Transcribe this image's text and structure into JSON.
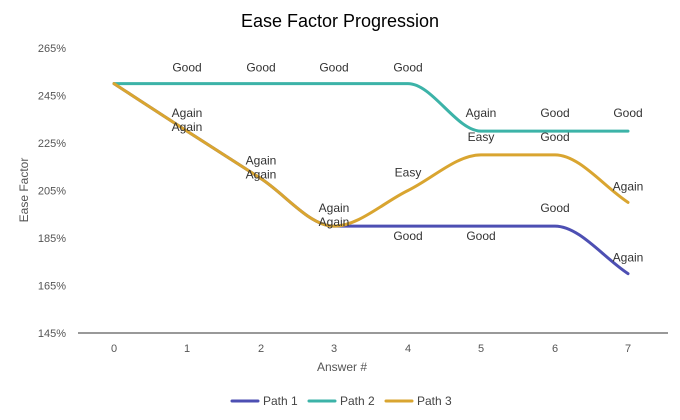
{
  "chart_data": {
    "type": "line",
    "title": "Ease Factor Progression",
    "xlabel": "Answer #",
    "ylabel": "Ease Factor",
    "x": [
      0,
      1,
      2,
      3,
      4,
      5,
      6,
      7
    ],
    "xlim": [
      0,
      7
    ],
    "ylim": [
      145,
      265
    ],
    "yticks": [
      145,
      165,
      185,
      205,
      225,
      245,
      265
    ],
    "ytick_labels": [
      "145%",
      "165%",
      "185%",
      "205%",
      "225%",
      "245%",
      "265%"
    ],
    "xtick_labels": [
      "0",
      "1",
      "2",
      "3",
      "4",
      "5",
      "6",
      "7"
    ],
    "grid": false,
    "legend_position": "bottom",
    "series": [
      {
        "name": "Path 1",
        "color": "#4d4fb3",
        "values": [
          250,
          230,
          210,
          190,
          190,
          190,
          190,
          170
        ],
        "labels": [
          "",
          "Again",
          "Again",
          "Again",
          "Good",
          "Good",
          "Good",
          "Again"
        ]
      },
      {
        "name": "Path 2",
        "color": "#3cb3a8",
        "values": [
          250,
          250,
          250,
          250,
          250,
          230,
          230,
          230
        ],
        "labels": [
          "",
          "Good",
          "Good",
          "Good",
          "Good",
          "Again",
          "Good",
          "Good"
        ]
      },
      {
        "name": "Path 3",
        "color": "#d9a530",
        "values": [
          250,
          230,
          210,
          190,
          205,
          220,
          220,
          200
        ],
        "labels": [
          "",
          "Again",
          "Again",
          "Again",
          "Easy",
          "Easy",
          "Good",
          "Again"
        ]
      }
    ]
  }
}
